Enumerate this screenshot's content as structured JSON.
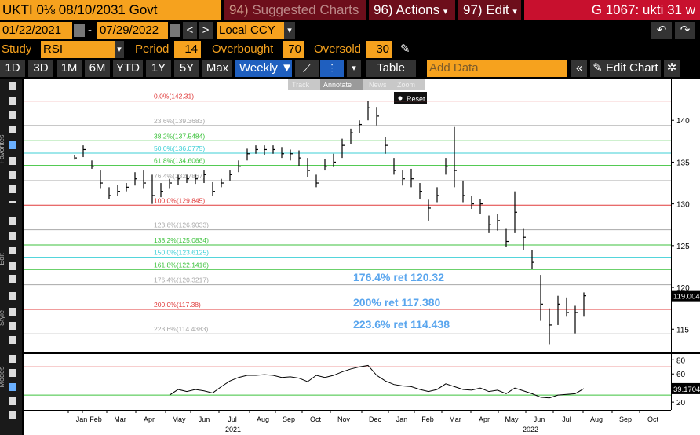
{
  "header": {
    "security": "UKTI 0⅛ 08/10/2031 Govt",
    "buttons": [
      {
        "num": "94)",
        "label": "Suggested Charts"
      },
      {
        "num": "96)",
        "label": "Actions"
      },
      {
        "num": "97)",
        "label": "Edit"
      }
    ],
    "page": "G 1067: ukti 31 w"
  },
  "range": {
    "start": "01/22/2021",
    "sep": "-",
    "end": "07/29/2022",
    "currency": "Local CCY"
  },
  "study": {
    "label": "Study",
    "name": "RSI",
    "period_label": "Period",
    "period": 14,
    "overbought_label": "Overbought",
    "overbought": 70,
    "oversold_label": "Oversold",
    "oversold": 30
  },
  "toolbar": {
    "periods": [
      "1D",
      "3D",
      "1M",
      "6M",
      "YTD",
      "1Y",
      "5Y",
      "Max"
    ],
    "frequency": "Weekly",
    "table": "Table",
    "add_data": "Add Data",
    "edit_chart": "Edit Chart"
  },
  "side_labels": [
    "Favorites",
    "Edit",
    "Style",
    "Modes"
  ],
  "chart_tools": [
    "Track",
    "Annotate",
    "News",
    "Zoom"
  ],
  "reset": "Reset",
  "chart_data": [
    {
      "type": "ohlc",
      "color": "#000000",
      "values": [
        135.5,
        136.5,
        134.5,
        132.5,
        131,
        131.5,
        132,
        133,
        132.5,
        131,
        131.5,
        132.5,
        133,
        133,
        133,
        133.5,
        131.5,
        132.5,
        133.5,
        134.5,
        136,
        136.5,
        136.5,
        136.5,
        136,
        136,
        135.5,
        134,
        132.5,
        134.5,
        135,
        137,
        138.5,
        139.5,
        141.5,
        140.5,
        137,
        134,
        133,
        133,
        131.5,
        129.5,
        131,
        134.5,
        134,
        131,
        130,
        130,
        127.5,
        128,
        125.5,
        129,
        126,
        123,
        118,
        115.5,
        118,
        117,
        117,
        119.004
      ],
      "high": [
        135.8,
        137,
        135.2,
        134,
        132,
        132.3,
        132.5,
        133.8,
        134,
        133.5,
        132.5,
        133,
        133.5,
        133.5,
        133.5,
        134,
        132.6,
        133,
        134,
        135.2,
        136.6,
        137,
        137,
        137,
        136.8,
        136.5,
        136.4,
        135.5,
        133.5,
        135.4,
        136,
        137.8,
        139,
        140,
        142.31,
        141.6,
        138,
        135.5,
        134,
        134.2,
        132.5,
        130.5,
        132,
        135.5,
        139.2,
        132.8,
        131,
        130.6,
        128.6,
        128.8,
        127,
        131.5,
        127,
        124.5,
        121.5,
        117.5,
        119,
        118.8,
        117.8,
        119.4
      ],
      "low": [
        135.3,
        135.6,
        134.2,
        131.8,
        130.6,
        131,
        131.5,
        132.2,
        131.8,
        130,
        130.8,
        131.8,
        132.3,
        132.5,
        132.4,
        132.5,
        131,
        132,
        132.8,
        133.8,
        135.2,
        136,
        135.8,
        136,
        135.5,
        135.2,
        134.5,
        133.2,
        132,
        134,
        134.4,
        135.5,
        137.2,
        138.5,
        140,
        139.4,
        136,
        133.5,
        132.2,
        132,
        130.6,
        128,
        130.2,
        133.5,
        132,
        130.2,
        129.4,
        128.8,
        126.5,
        126.8,
        124.8,
        126.5,
        124.5,
        122.2,
        116,
        113.2,
        115.5,
        116.5,
        114.5,
        116.5
      ],
      "last_label": "119.004",
      "ylim": [
        112.3,
        145
      ],
      "yticks": [
        115,
        120,
        125,
        130,
        135,
        140
      ],
      "levels": [
        {
          "label": "0.0%(142.31)",
          "value": 142.31,
          "color": "#e03a3a"
        },
        {
          "label": "23.6%(139.3683)",
          "value": 139.3683,
          "color": "#a8a8a8"
        },
        {
          "label": "38.2%(137.5484)",
          "value": 137.5484,
          "color": "#3cc23c"
        },
        {
          "label": "50.0%(136.0775)",
          "value": 136.0775,
          "color": "#3ccfd6"
        },
        {
          "label": "61.8%(134.6066)",
          "value": 134.6066,
          "color": "#3cc23c"
        },
        {
          "label": "76.4%(132.7867)",
          "value": 132.7867,
          "color": "#a8a8a8"
        },
        {
          "label": "100.0%(129.845)",
          "value": 129.845,
          "color": "#e03a3a"
        },
        {
          "label": "123.6%(126.9033)",
          "value": 126.9033,
          "color": "#a8a8a8"
        },
        {
          "label": "138.2%(125.0834)",
          "value": 125.0834,
          "color": "#3cc23c"
        },
        {
          "label": "150.0%(123.6125)",
          "value": 123.6125,
          "color": "#3ccfd6"
        },
        {
          "label": "161.8%(122.1416)",
          "value": 122.1416,
          "color": "#3cc23c"
        },
        {
          "label": "176.4%(120.3217)",
          "value": 120.3217,
          "color": "#a8a8a8"
        },
        {
          "label": "200.0%(117.38)",
          "value": 117.38,
          "color": "#e03a3a"
        },
        {
          "label": "223.6%(114.4383)",
          "value": 114.4383,
          "color": "#a8a8a8"
        }
      ],
      "annotations": [
        "176.4% ret 120.32",
        "200% ret 117.380",
        "223.6% ret 114.438"
      ]
    },
    {
      "type": "line",
      "color": "#000000",
      "values": [
        null,
        null,
        null,
        null,
        null,
        null,
        null,
        null,
        null,
        null,
        null,
        30,
        38,
        35,
        38,
        36,
        33,
        42,
        50,
        55,
        58,
        58,
        59,
        58,
        55,
        56,
        54,
        49,
        58,
        55,
        58,
        63,
        67,
        70,
        72,
        58,
        50,
        45,
        43,
        42,
        38,
        35,
        38,
        46,
        42,
        38,
        37,
        40,
        35,
        37,
        32,
        40,
        36,
        32,
        27,
        26,
        30,
        31,
        32,
        39.1704
      ],
      "last_label": "39.1704",
      "ylim": [
        9,
        87
      ],
      "yticks": [
        20,
        40,
        60,
        80
      ],
      "x_labels": [
        "Jan",
        "Feb",
        "Mar",
        "Apr",
        "May",
        "Jun",
        "Jul",
        "Aug",
        "Sep",
        "Oct",
        "Nov",
        "Dec",
        "Jan",
        "Feb",
        "Mar",
        "Apr",
        "May",
        "Jun",
        "Jul",
        "Aug",
        "Sep",
        "Oct"
      ],
      "years": [
        "2021",
        "2022"
      ]
    }
  ]
}
